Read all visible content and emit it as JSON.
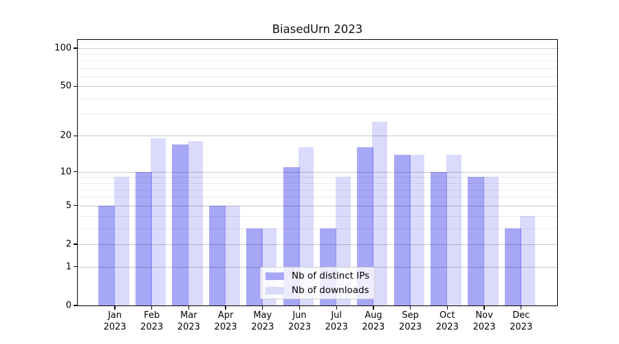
{
  "figure": {
    "title": "BiasedUrn 2023"
  },
  "chart_data": {
    "type": "bar",
    "title": "BiasedUrn 2023",
    "x_ticks": [
      {
        "month": "Jan",
        "year": "2023"
      },
      {
        "month": "Feb",
        "year": "2023"
      },
      {
        "month": "Mar",
        "year": "2023"
      },
      {
        "month": "Apr",
        "year": "2023"
      },
      {
        "month": "May",
        "year": "2023"
      },
      {
        "month": "Jun",
        "year": "2023"
      },
      {
        "month": "Jul",
        "year": "2023"
      },
      {
        "month": "Aug",
        "year": "2023"
      },
      {
        "month": "Sep",
        "year": "2023"
      },
      {
        "month": "Oct",
        "year": "2023"
      },
      {
        "month": "Nov",
        "year": "2023"
      },
      {
        "month": "Dec",
        "year": "2023"
      }
    ],
    "series": [
      {
        "name": "Nb of distinct IPs",
        "values": [
          5,
          10,
          17,
          5,
          3,
          11,
          3,
          16,
          14,
          10,
          9,
          3
        ],
        "color": "#a7a7f7",
        "fill_rgba": "rgba(79,79,239,0.50)"
      },
      {
        "name": "Nb of downloads",
        "values": [
          9,
          19,
          18,
          5,
          3,
          16,
          9,
          26,
          14,
          14,
          9,
          4
        ],
        "color": "#dadafa",
        "fill_rgba": "rgba(79,79,239,0.21)"
      }
    ],
    "y_axis": {
      "scale": "log10(1+y)",
      "tick_values": [
        0,
        1,
        2,
        5,
        10,
        20,
        50,
        100
      ],
      "tick_labels": [
        "0",
        "1",
        "2",
        "5",
        "10",
        "20",
        "50",
        "100"
      ],
      "minor_gridline_values": [
        3,
        4,
        6,
        7,
        8,
        9,
        30,
        40,
        60,
        70,
        80,
        90
      ],
      "range": [
        0,
        120
      ]
    },
    "grid": true,
    "legend": {
      "position": "lower-center",
      "entries": [
        "Nb of distinct IPs",
        "Nb of downloads"
      ]
    }
  }
}
